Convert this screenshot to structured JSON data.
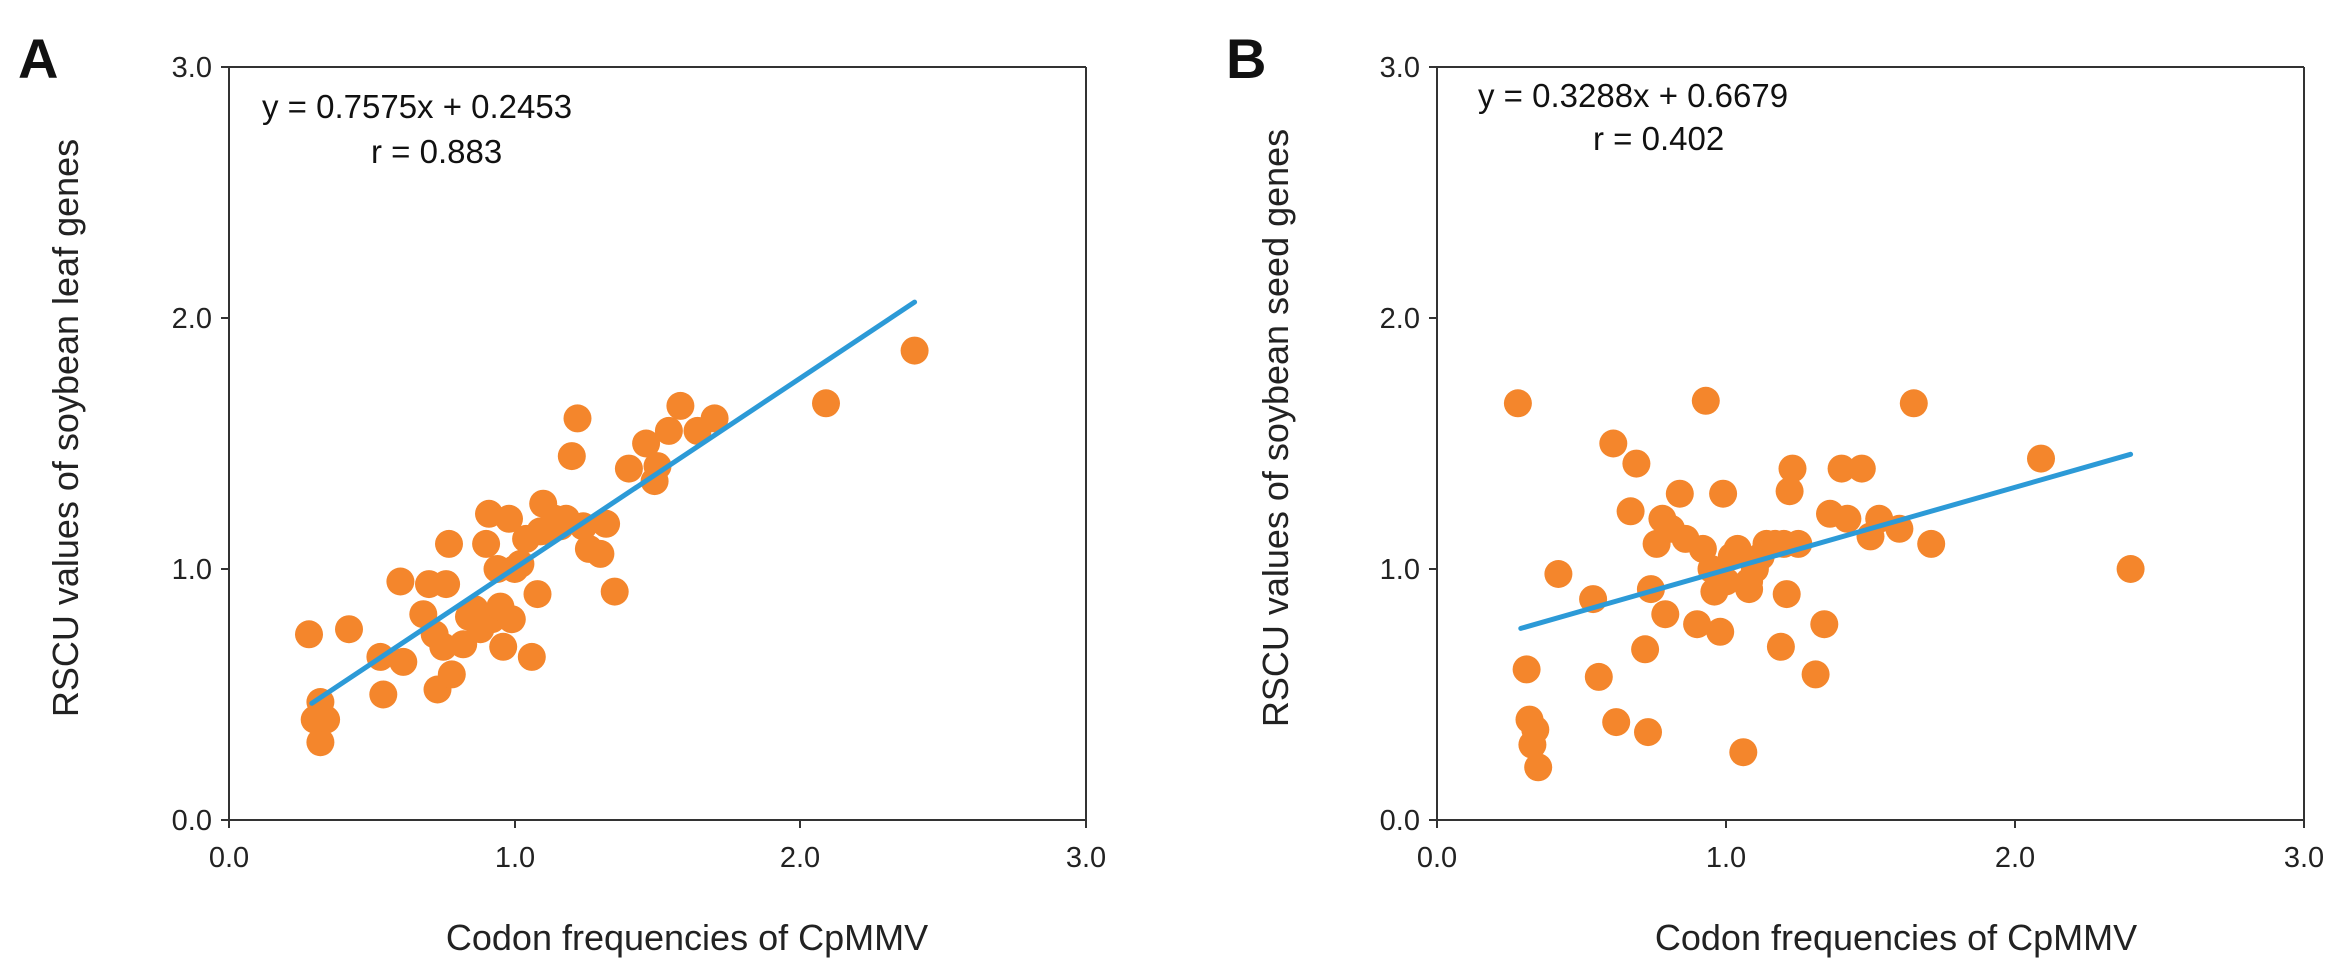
{
  "colors": {
    "point": "#F4862C",
    "line": "#2C9AD7",
    "axis": "#333333"
  },
  "chart_data": [
    {
      "type": "scatter",
      "panel_label": "A",
      "xlabel": "Codon frequencies of CpMMV",
      "ylabel": "RSCU values of soybean leaf genes",
      "xlim": [
        0,
        3
      ],
      "ylim": [
        0,
        3
      ],
      "xticks": [
        "0.0",
        "1.0",
        "2.0",
        "3.0"
      ],
      "yticks": [
        "0.0",
        "1.0",
        "2.0",
        "3.0"
      ],
      "equation": "y = 0.7575x + 0.2453",
      "r_label": "r = 0.883",
      "trend": {
        "slope": 0.7575,
        "intercept": 0.2453,
        "x_range": [
          0.29,
          2.4
        ]
      },
      "points": [
        [
          0.28,
          0.74
        ],
        [
          0.32,
          0.47
        ],
        [
          0.34,
          0.4
        ],
        [
          0.32,
          0.31
        ],
        [
          0.3,
          0.4
        ],
        [
          0.42,
          0.76
        ],
        [
          0.53,
          0.65
        ],
        [
          0.54,
          0.5
        ],
        [
          0.6,
          0.95
        ],
        [
          0.61,
          0.63
        ],
        [
          0.68,
          0.82
        ],
        [
          0.7,
          0.94
        ],
        [
          0.72,
          0.74
        ],
        [
          0.73,
          0.52
        ],
        [
          0.75,
          0.69
        ],
        [
          0.76,
          0.94
        ],
        [
          0.77,
          1.1
        ],
        [
          0.78,
          0.58
        ],
        [
          0.82,
          0.7
        ],
        [
          0.84,
          0.81
        ],
        [
          0.86,
          0.84
        ],
        [
          0.88,
          0.76
        ],
        [
          0.9,
          1.1
        ],
        [
          0.91,
          1.22
        ],
        [
          0.92,
          0.8
        ],
        [
          0.94,
          1.0
        ],
        [
          0.95,
          0.85
        ],
        [
          0.96,
          0.69
        ],
        [
          0.98,
          1.2
        ],
        [
          0.99,
          0.8
        ],
        [
          1.0,
          1.0
        ],
        [
          1.02,
          1.02
        ],
        [
          1.04,
          1.12
        ],
        [
          1.06,
          0.65
        ],
        [
          1.08,
          0.9
        ],
        [
          1.09,
          1.15
        ],
        [
          1.1,
          1.26
        ],
        [
          1.12,
          1.15
        ],
        [
          1.14,
          1.2
        ],
        [
          1.16,
          1.17
        ],
        [
          1.18,
          1.2
        ],
        [
          1.2,
          1.45
        ],
        [
          1.22,
          1.6
        ],
        [
          1.24,
          1.17
        ],
        [
          1.26,
          1.08
        ],
        [
          1.3,
          1.06
        ],
        [
          1.32,
          1.18
        ],
        [
          1.35,
          0.91
        ],
        [
          1.4,
          1.4
        ],
        [
          1.46,
          1.5
        ],
        [
          1.49,
          1.35
        ],
        [
          1.5,
          1.41
        ],
        [
          1.54,
          1.55
        ],
        [
          1.58,
          1.65
        ],
        [
          1.64,
          1.55
        ],
        [
          1.7,
          1.6
        ],
        [
          2.09,
          1.66
        ],
        [
          2.4,
          1.87
        ]
      ]
    },
    {
      "type": "scatter",
      "panel_label": "B",
      "xlabel": "Codon frequencies of CpMMV",
      "ylabel": "RSCU values of soybean seed genes",
      "xlim": [
        0,
        3
      ],
      "ylim": [
        0,
        3
      ],
      "xticks": [
        "0.0",
        "1.0",
        "2.0",
        "3.0"
      ],
      "yticks": [
        "0.0",
        "1.0",
        "2.0",
        "3.0"
      ],
      "equation": "y = 0.3288x + 0.6679",
      "r_label": "r = 0.402",
      "trend": {
        "slope": 0.3288,
        "intercept": 0.6679,
        "x_range": [
          0.29,
          2.4
        ]
      },
      "points": [
        [
          0.28,
          1.66
        ],
        [
          0.31,
          0.6
        ],
        [
          0.32,
          0.4
        ],
        [
          0.33,
          0.3
        ],
        [
          0.34,
          0.36
        ],
        [
          0.35,
          0.21
        ],
        [
          0.42,
          0.98
        ],
        [
          0.54,
          0.88
        ],
        [
          0.56,
          0.57
        ],
        [
          0.61,
          1.5
        ],
        [
          0.62,
          0.39
        ],
        [
          0.67,
          1.23
        ],
        [
          0.69,
          1.42
        ],
        [
          0.72,
          0.68
        ],
        [
          0.73,
          0.35
        ],
        [
          0.74,
          0.92
        ],
        [
          0.76,
          1.1
        ],
        [
          0.78,
          1.2
        ],
        [
          0.79,
          0.82
        ],
        [
          0.81,
          1.16
        ],
        [
          0.84,
          1.3
        ],
        [
          0.86,
          1.12
        ],
        [
          0.9,
          0.78
        ],
        [
          0.92,
          1.08
        ],
        [
          0.93,
          1.67
        ],
        [
          0.95,
          1.0
        ],
        [
          0.96,
          0.91
        ],
        [
          0.98,
          0.75
        ],
        [
          0.99,
          1.3
        ],
        [
          1.0,
          0.95
        ],
        [
          1.02,
          1.05
        ],
        [
          1.04,
          1.08
        ],
        [
          1.06,
          0.27
        ],
        [
          1.08,
          0.95
        ],
        [
          1.1,
          1.0
        ],
        [
          1.12,
          1.05
        ],
        [
          1.14,
          1.1
        ],
        [
          1.17,
          1.1
        ],
        [
          1.19,
          0.69
        ],
        [
          1.2,
          1.1
        ],
        [
          1.22,
          1.31
        ],
        [
          1.23,
          1.4
        ],
        [
          1.25,
          1.1
        ],
        [
          1.31,
          0.58
        ],
        [
          1.34,
          0.78
        ],
        [
          1.36,
          1.22
        ],
        [
          1.4,
          1.4
        ],
        [
          1.42,
          1.2
        ],
        [
          1.47,
          1.4
        ],
        [
          1.5,
          1.13
        ],
        [
          1.53,
          1.2
        ],
        [
          1.6,
          1.16
        ],
        [
          1.65,
          1.66
        ],
        [
          1.71,
          1.1
        ],
        [
          2.09,
          1.44
        ],
        [
          2.4,
          1.0
        ],
        [
          1.21,
          0.9
        ],
        [
          1.08,
          0.92
        ]
      ]
    }
  ]
}
